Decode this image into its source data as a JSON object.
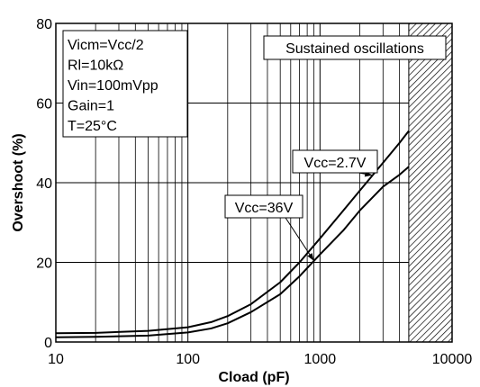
{
  "chart_data": {
    "type": "line",
    "xlabel": "Cload (pF)",
    "ylabel": "Overshoot (%)",
    "x_scale": "log",
    "xlim": [
      10,
      10000
    ],
    "ylim": [
      0,
      80
    ],
    "grid": true,
    "x_ticks": [
      "10",
      "100",
      "1000",
      "10000"
    ],
    "y_ticks": [
      "0",
      "20",
      "40",
      "60",
      "80"
    ],
    "conditions": [
      "Vicm=Vcc/2",
      "Rl=10kΩ",
      "Vin=100mVpp",
      "Gain=1",
      "T=25°C"
    ],
    "region": {
      "label": "Sustained oscillations",
      "x_from": 4700,
      "x_to": 10000
    },
    "series": [
      {
        "name": "Vcc=2.7V",
        "x": [
          10,
          20,
          50,
          100,
          150,
          200,
          300,
          500,
          700,
          1000,
          1500,
          2000,
          3000,
          4000,
          4700
        ],
        "y": [
          2.2,
          2.3,
          2.8,
          3.7,
          5.0,
          6.5,
          9.5,
          15,
          20,
          26,
          33,
          38,
          45,
          50,
          53
        ]
      },
      {
        "name": "Vcc=36V",
        "x": [
          10,
          20,
          50,
          100,
          150,
          200,
          300,
          500,
          700,
          1000,
          1500,
          2000,
          3000,
          4000,
          4700
        ],
        "y": [
          1.2,
          1.3,
          1.6,
          2.4,
          3.4,
          4.7,
          7.5,
          12,
          16.5,
          22,
          28,
          33,
          39,
          42,
          44
        ]
      }
    ],
    "series_labels": [
      {
        "text": "Vcc=2.7V",
        "target_series": 0,
        "target_x": 2500
      },
      {
        "text": "Vcc=36V",
        "target_series": 1,
        "target_x": 900
      }
    ]
  }
}
